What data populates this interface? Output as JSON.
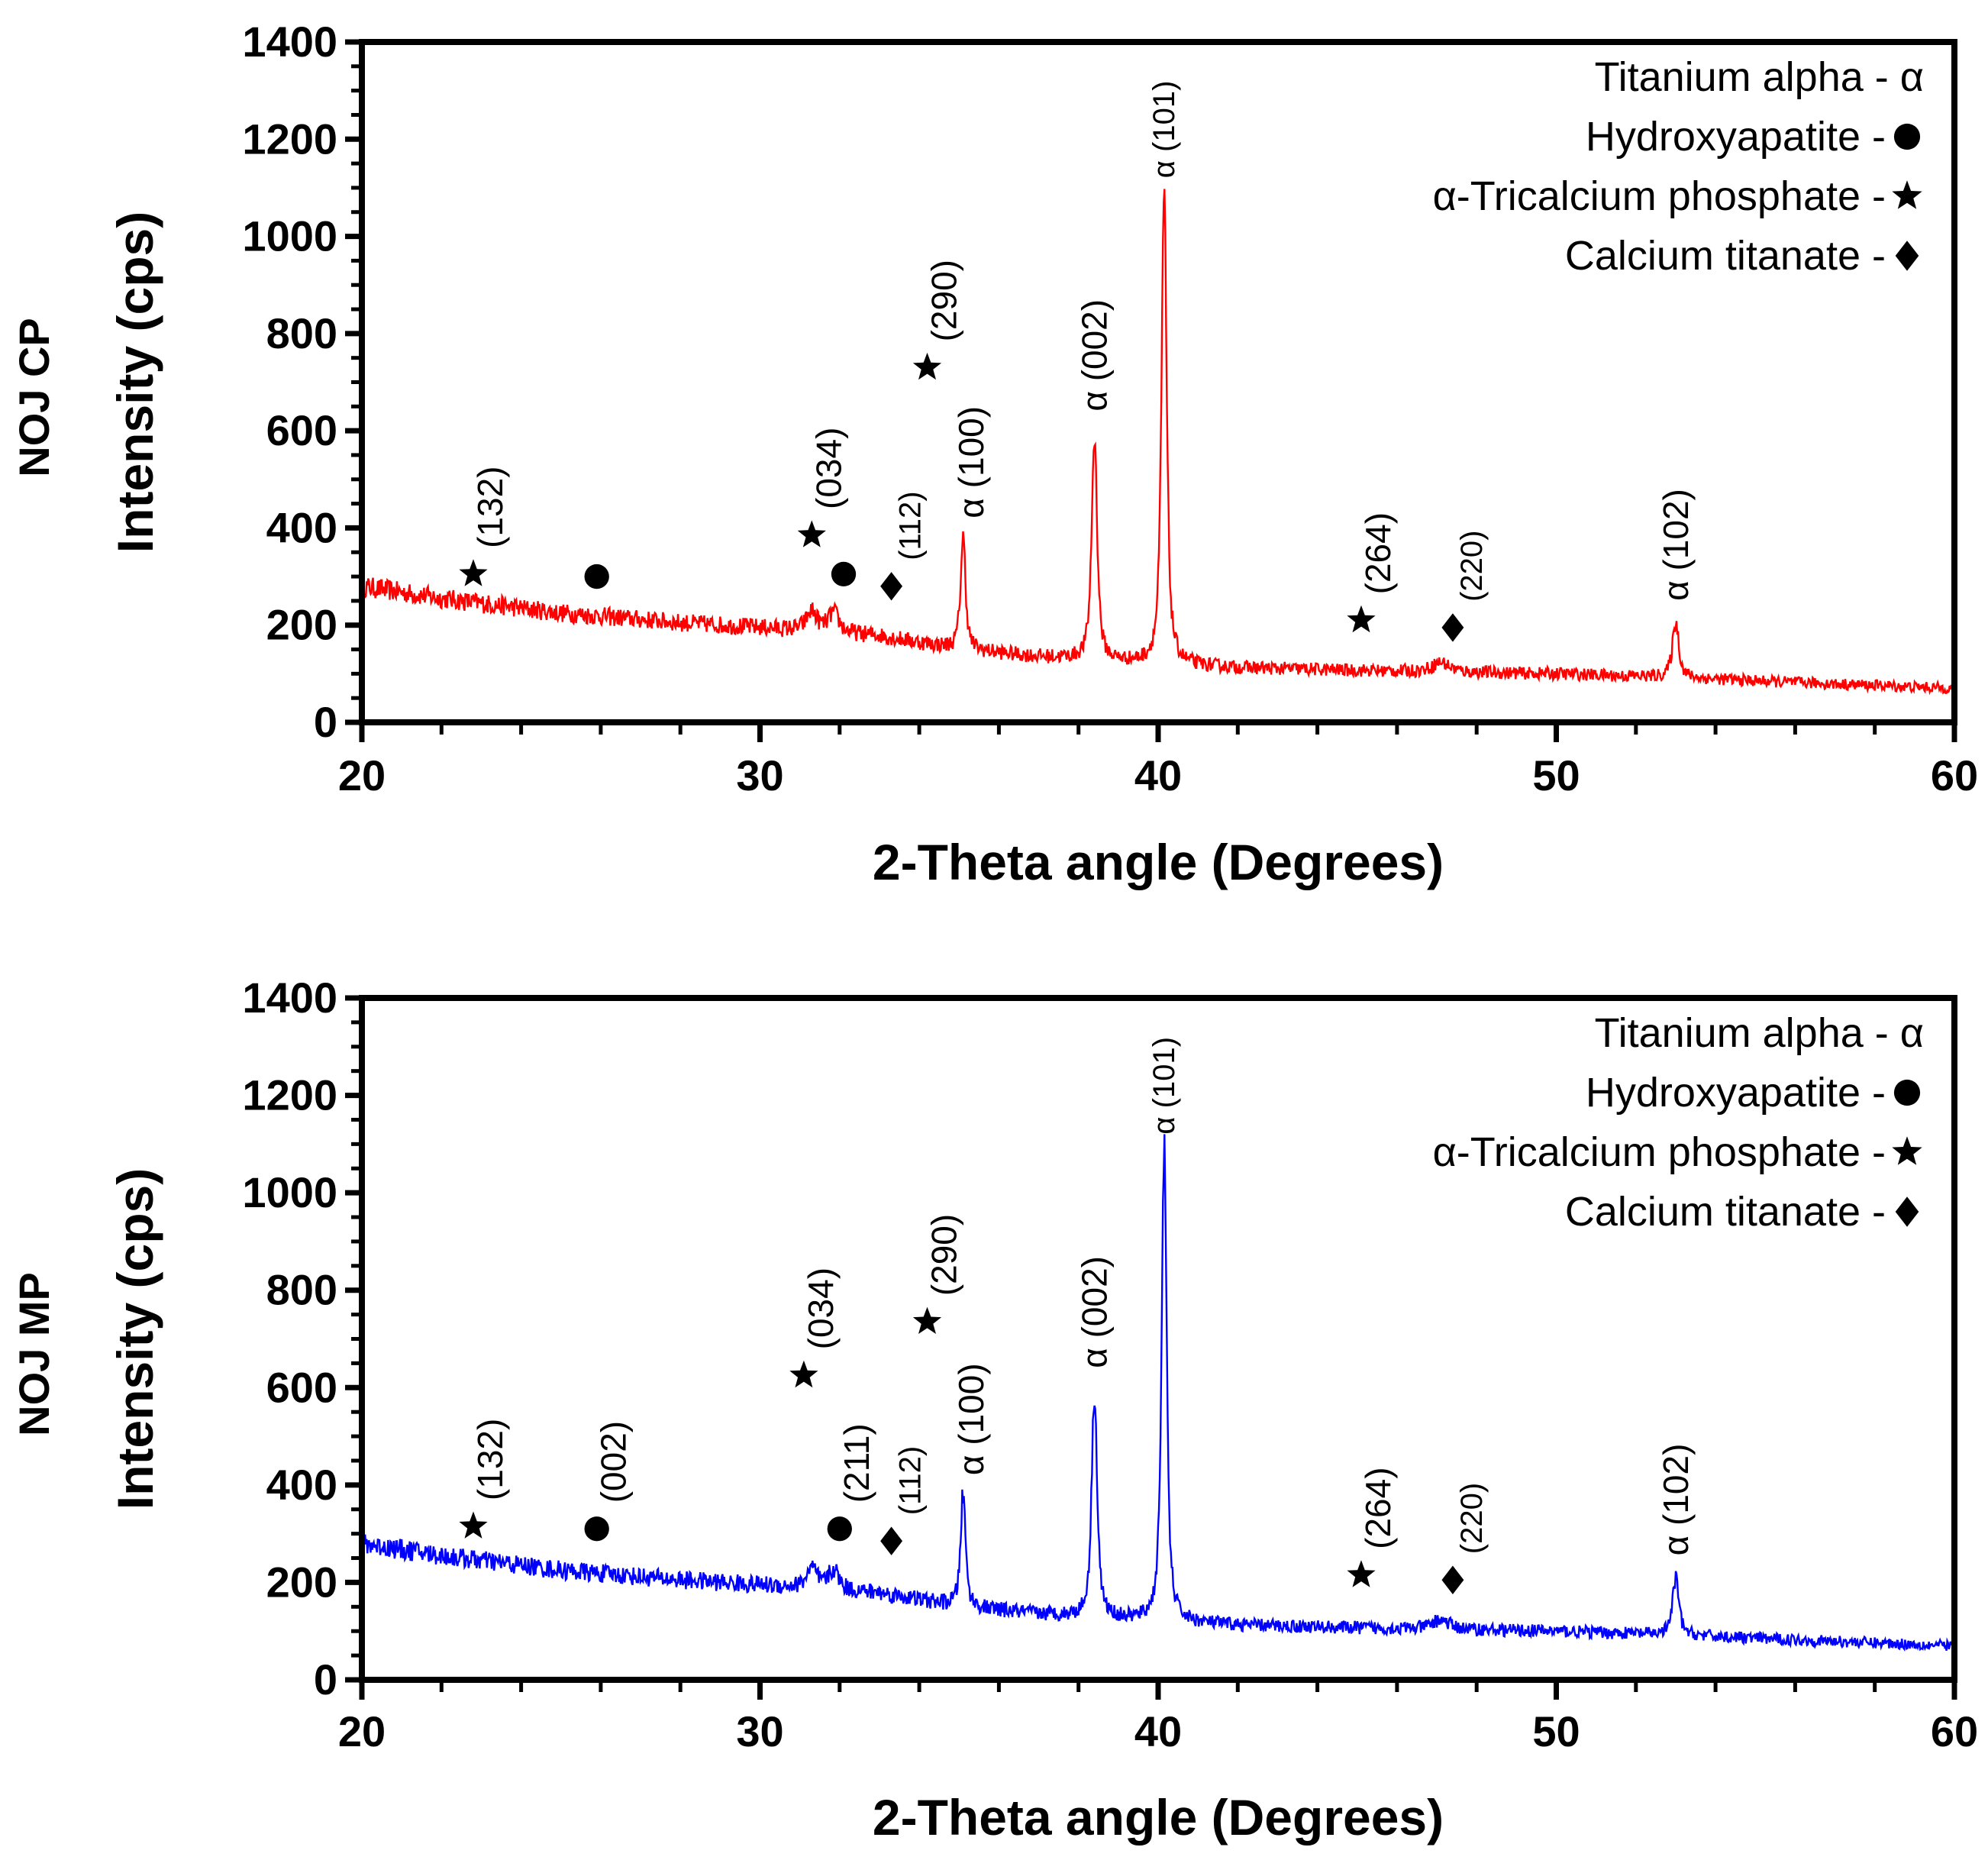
{
  "chart_data": [
    {
      "type": "line",
      "panel_label": "NOJ CP",
      "xlabel": "2-Theta angle (Degrees)",
      "ylabel": "Intensity (cps)",
      "xlim": [
        20,
        60
      ],
      "ylim": [
        0,
        1400
      ],
      "xticks": [
        20,
        30,
        40,
        50,
        60
      ],
      "yticks": [
        0,
        200,
        400,
        600,
        800,
        1000,
        1200,
        1400
      ],
      "grid": false,
      "line_color": "#ff0000",
      "baseline": [
        [
          20,
          280
        ],
        [
          22,
          255
        ],
        [
          25,
          225
        ],
        [
          28,
          205
        ],
        [
          30,
          195
        ],
        [
          33,
          178
        ],
        [
          35,
          150
        ],
        [
          37,
          135
        ],
        [
          39,
          125
        ],
        [
          42,
          112
        ],
        [
          46,
          105
        ],
        [
          50,
          100
        ],
        [
          53,
          92
        ],
        [
          56,
          82
        ],
        [
          60,
          70
        ]
      ],
      "peaks": [
        [
          31.3,
          40,
          0.25
        ],
        [
          31.85,
          40,
          0.25
        ],
        [
          35.1,
          230,
          0.12
        ],
        [
          38.4,
          460,
          0.13
        ],
        [
          40.15,
          975,
          0.12
        ],
        [
          47.1,
          20,
          0.4
        ],
        [
          53.0,
          115,
          0.15
        ]
      ],
      "legend": {
        "placement": "top-right",
        "entries": [
          {
            "label": "Titanium alpha - α",
            "marker": ""
          },
          {
            "label": "Hydroxyapatite - ",
            "marker": "circle"
          },
          {
            "label": "α-Tricalcium phosphate - ",
            "marker": "star"
          },
          {
            "label": "Calcium titanate - ",
            "marker": "diamond"
          }
        ]
      },
      "annotations": [
        {
          "x": 22.8,
          "y": 305,
          "marker": "star",
          "label": "(132)"
        },
        {
          "x": 25.9,
          "y": 300,
          "marker": "circle",
          "label": ""
        },
        {
          "x": 31.3,
          "y": 385,
          "marker": "star",
          "label": "(034)"
        },
        {
          "x": 32.1,
          "y": 305,
          "marker": "circle",
          "label": ""
        },
        {
          "x": 33.3,
          "y": 280,
          "marker": "diamond",
          "label": "(112)",
          "small": true
        },
        {
          "x": 34.2,
          "y": 730,
          "marker": "star",
          "label": "(290)"
        },
        {
          "x": 35.3,
          "y": 420,
          "marker": "",
          "label": "α (100)"
        },
        {
          "x": 38.4,
          "y": 640,
          "marker": "",
          "label": "α (002)"
        },
        {
          "x": 40.1,
          "y": 1120,
          "marker": "",
          "label": "α (101)",
          "small": true
        },
        {
          "x": 45.1,
          "y": 210,
          "marker": "star",
          "label": "(264)"
        },
        {
          "x": 47.4,
          "y": 195,
          "marker": "diamond",
          "label": "(220)",
          "small": true
        },
        {
          "x": 53.0,
          "y": 250,
          "marker": "",
          "label": "α (102)"
        }
      ]
    },
    {
      "type": "line",
      "panel_label": "NOJ MP",
      "xlabel": "2-Theta angle (Degrees)",
      "ylabel": "Intensity (cps)",
      "xlim": [
        20,
        60
      ],
      "ylim": [
        0,
        1400
      ],
      "xticks": [
        20,
        30,
        40,
        50,
        60
      ],
      "yticks": [
        0,
        200,
        400,
        600,
        800,
        1000,
        1200,
        1400
      ],
      "grid": false,
      "line_color": "#0000ff",
      "baseline": [
        [
          20,
          280
        ],
        [
          22,
          255
        ],
        [
          25,
          225
        ],
        [
          28,
          205
        ],
        [
          30,
          195
        ],
        [
          33,
          178
        ],
        [
          35,
          150
        ],
        [
          37,
          135
        ],
        [
          39,
          125
        ],
        [
          42,
          112
        ],
        [
          46,
          105
        ],
        [
          50,
          100
        ],
        [
          53,
          92
        ],
        [
          56,
          82
        ],
        [
          60,
          70
        ]
      ],
      "peaks": [
        [
          31.3,
          40,
          0.25
        ],
        [
          31.85,
          40,
          0.25
        ],
        [
          35.1,
          230,
          0.12
        ],
        [
          38.4,
          465,
          0.13
        ],
        [
          40.15,
          975,
          0.12
        ],
        [
          47.1,
          20,
          0.4
        ],
        [
          53.0,
          115,
          0.15
        ]
      ],
      "legend": {
        "placement": "top-right",
        "entries": [
          {
            "label": "Titanium alpha - α",
            "marker": ""
          },
          {
            "label": "Hydroxyapatite - ",
            "marker": "circle"
          },
          {
            "label": "α-Tricalcium phosphate - ",
            "marker": "star"
          },
          {
            "label": "Calcium titanate - ",
            "marker": "diamond"
          }
        ]
      },
      "annotations": [
        {
          "x": 22.8,
          "y": 315,
          "marker": "star",
          "label": "(132)"
        },
        {
          "x": 25.9,
          "y": 310,
          "marker": "circle",
          "label": "(002)"
        },
        {
          "x": 31.1,
          "y": 625,
          "marker": "star",
          "label": "(034)"
        },
        {
          "x": 32.0,
          "y": 310,
          "marker": "circle",
          "label": "(211)"
        },
        {
          "x": 33.3,
          "y": 285,
          "marker": "diamond",
          "label": "(112)",
          "small": true
        },
        {
          "x": 34.2,
          "y": 735,
          "marker": "star",
          "label": "(290)"
        },
        {
          "x": 35.3,
          "y": 420,
          "marker": "",
          "label": "α (100)"
        },
        {
          "x": 38.4,
          "y": 640,
          "marker": "",
          "label": "α (002)"
        },
        {
          "x": 40.1,
          "y": 1120,
          "marker": "",
          "label": "α (101)",
          "small": true
        },
        {
          "x": 45.1,
          "y": 215,
          "marker": "star",
          "label": "(264)"
        },
        {
          "x": 47.4,
          "y": 205,
          "marker": "diamond",
          "label": "(220)",
          "small": true
        },
        {
          "x": 53.0,
          "y": 255,
          "marker": "",
          "label": "α (102)"
        }
      ]
    }
  ]
}
